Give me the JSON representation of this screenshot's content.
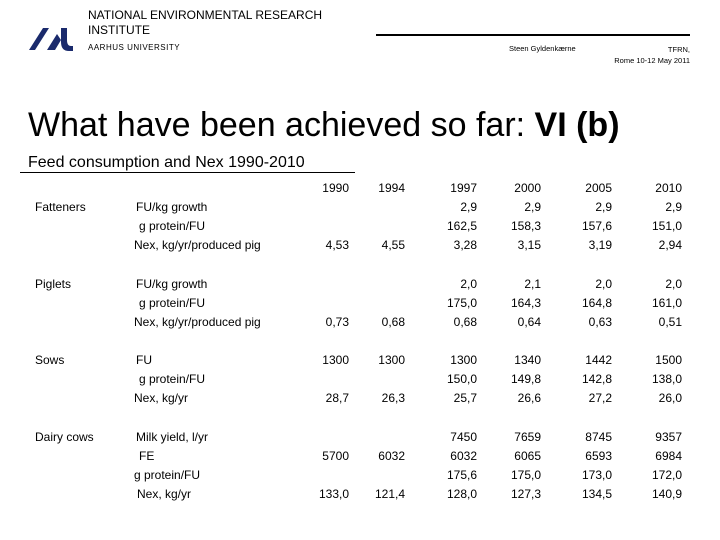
{
  "header": {
    "institute": "NATIONAL ENVIRONMENTAL RESEARCH INSTITUTE",
    "university": "AARHUS UNIVERSITY",
    "author": "Steen Gyldenkærne",
    "event_line1": "TFRN,",
    "event_line2": "Rome 10-12 May 2011"
  },
  "slide": {
    "title_regular": "What have been achieved so far: ",
    "title_bold": "VI (b)",
    "subtitle": "Feed consumption and Nex 1990-2010"
  },
  "table": {
    "years": [
      "1990",
      "1994",
      "1997",
      "2000",
      "2005",
      "2010"
    ],
    "groups": [
      {
        "name": "Fatteners",
        "rows": [
          {
            "label": "FU/kg growth",
            "values": [
              "",
              "",
              "2,9",
              "2,9",
              "2,9",
              "2,9"
            ]
          },
          {
            "label": "g protein/FU",
            "values": [
              "",
              "",
              "162,5",
              "158,3",
              "157,6",
              "151,0"
            ]
          },
          {
            "label": "Nex, kg/yr/produced pig",
            "values": [
              "4,53",
              "4,55",
              "3,28",
              "3,15",
              "3,19",
              "2,94"
            ]
          }
        ]
      },
      {
        "name": "Piglets",
        "rows": [
          {
            "label": "FU/kg growth",
            "values": [
              "",
              "",
              "2,0",
              "2,1",
              "2,0",
              "2,0"
            ]
          },
          {
            "label": "g protein/FU",
            "values": [
              "",
              "",
              "175,0",
              "164,3",
              "164,8",
              "161,0"
            ]
          },
          {
            "label": "Nex, kg/yr/produced pig",
            "values": [
              "0,73",
              "0,68",
              "0,68",
              "0,64",
              "0,63",
              "0,51"
            ]
          }
        ]
      },
      {
        "name": "Sows",
        "rows": [
          {
            "label": "FU",
            "values": [
              "1300",
              "1300",
              "1300",
              "1340",
              "1442",
              "1500"
            ]
          },
          {
            "label": "g protein/FU",
            "values": [
              "",
              "",
              "150,0",
              "149,8",
              "142,8",
              "138,0"
            ]
          },
          {
            "label": "Nex, kg/yr",
            "values": [
              "28,7",
              "26,3",
              "25,7",
              "26,6",
              "27,2",
              "26,0"
            ]
          }
        ]
      },
      {
        "name": "Dairy cows",
        "rows": [
          {
            "label": "Milk yield, l/yr",
            "values": [
              "",
              "",
              "7450",
              "7659",
              "8745",
              "9357"
            ]
          },
          {
            "label": "FE",
            "values": [
              "5700",
              "6032",
              "6032",
              "6065",
              "6593",
              "6984"
            ]
          },
          {
            "label": "g protein/FU",
            "values": [
              "",
              "",
              "175,6",
              "175,0",
              "173,0",
              "172,0"
            ]
          },
          {
            "label": "Nex, kg/yr",
            "values": [
              "133,0",
              "121,4",
              "128,0",
              "127,3",
              "134,5",
              "140,9"
            ]
          }
        ]
      }
    ]
  }
}
